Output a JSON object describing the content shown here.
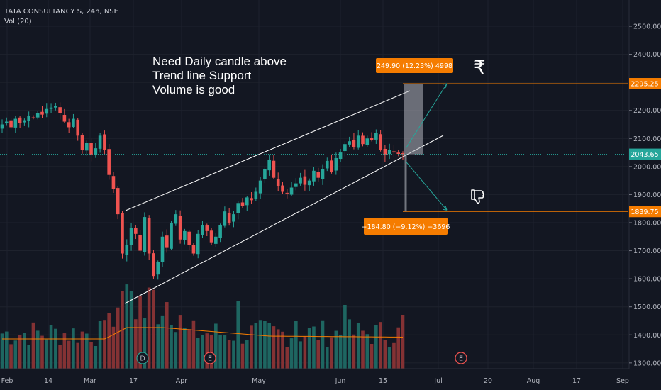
{
  "header": {
    "symbol_line": "TATA CONSULTANCY S, 24h, NSE",
    "volume_line": "Vol (20)"
  },
  "annotation": {
    "lines": [
      "Need Daily candle above",
      "Trend line Support",
      "Volume is good"
    ]
  },
  "icons": {
    "rupee": "₹",
    "thumbs_down": "thumbs-down-icon"
  },
  "colors": {
    "up": "#26a69a",
    "down": "#ef5350",
    "orange": "#f57c00",
    "background": "#131722"
  },
  "price_tags": {
    "current": "2043.65",
    "target": "2295.25",
    "stop": "1839.75"
  },
  "measure": {
    "up_label": "249.90 (12.23%) 4998",
    "down_label": "−184.80 (−9.12%) −3696"
  },
  "event_markers": [
    {
      "label": "D",
      "date": "Mar 20"
    },
    {
      "label": "E",
      "date": "Apr 16"
    },
    {
      "label": "E",
      "date": "Jul 9"
    }
  ],
  "chart_data": {
    "type": "candlestick",
    "x_ticks": [
      "Feb",
      "14",
      "Mar",
      "17",
      "Apr",
      "May",
      "Jun",
      "15",
      "Jul",
      "20",
      "Aug",
      "17",
      "Sep"
    ],
    "y_ticks": [
      "2500.00",
      "2400.00",
      "2300.00",
      "2200.00",
      "2100.00",
      "2000.00",
      "1900.00",
      "1800.00",
      "1700.00",
      "1600.00",
      "1500.00",
      "1400.00",
      "1300.00"
    ],
    "ylim": [
      1275,
      2560
    ],
    "series": [
      {
        "name": "Vol (20)",
        "values": []
      }
    ],
    "close_path": [
      2150,
      2160,
      2140,
      2170,
      2155,
      2165,
      2180,
      2175,
      2190,
      2185,
      2205,
      2210,
      2215,
      2190,
      2160,
      2140,
      2170,
      2110,
      2060,
      2085,
      2040,
      2065,
      2110,
      2060,
      1970,
      1920,
      1830,
      1690,
      1720,
      1780,
      1760,
      1700,
      1820,
      1690,
      1610,
      1660,
      1750,
      1710,
      1800,
      1830,
      1740,
      1770,
      1720,
      1690,
      1760,
      1790,
      1770,
      1730,
      1750,
      1790,
      1840,
      1800,
      1830,
      1870,
      1860,
      1890,
      1880,
      1910,
      1950,
      1990,
      2025,
      1960,
      1930,
      1910,
      1905,
      1925,
      1940,
      1960,
      1935,
      1950,
      1985,
      1960,
      1990,
      2020,
      1980,
      2030,
      2050,
      2080,
      2090,
      2070,
      2110,
      2080,
      2100,
      2095,
      2120,
      2060,
      2040,
      2060,
      2050,
      2045,
      2043.65
    ]
  }
}
